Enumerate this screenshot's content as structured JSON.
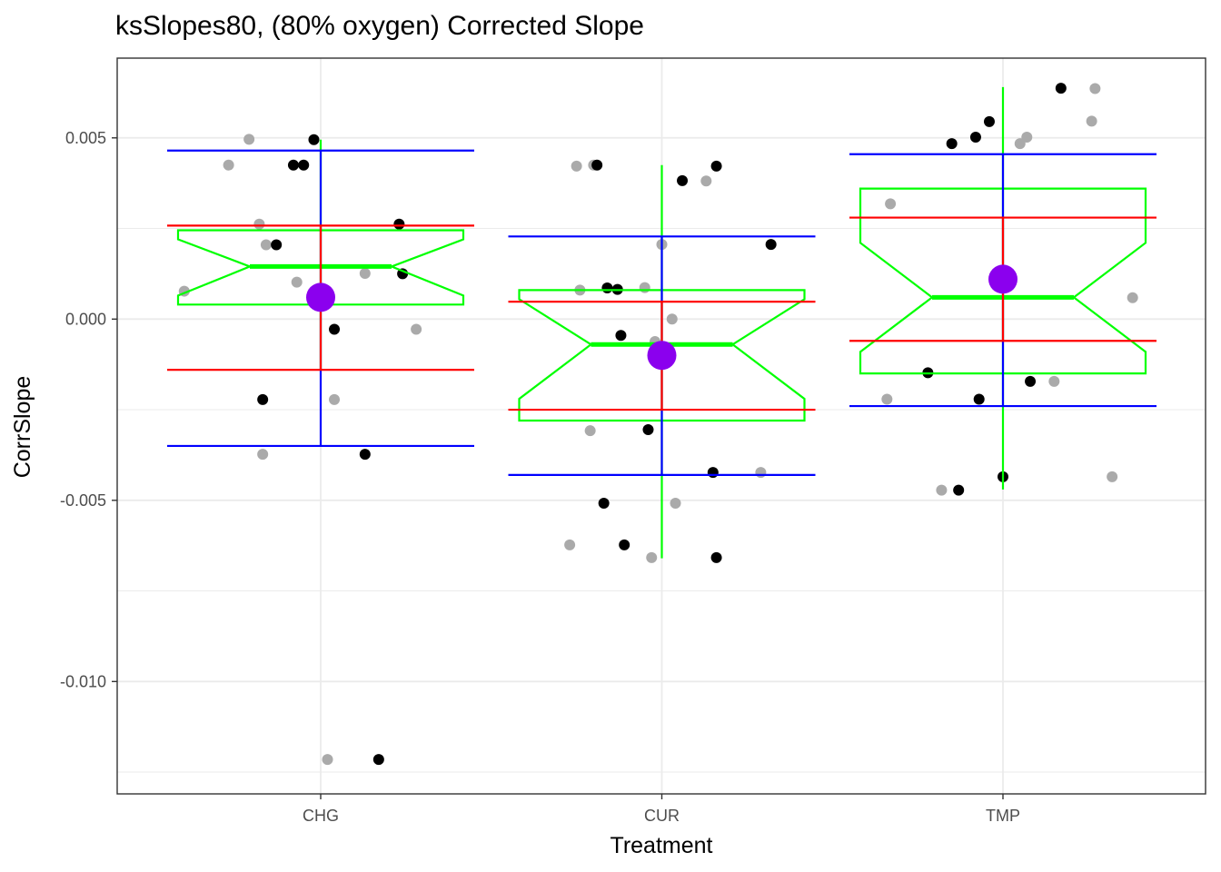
{
  "chart_data": {
    "type": "boxplot",
    "title": "ksSlopes80, (80% oxygen) Corrected Slope",
    "xlabel": "Treatment",
    "ylabel": "CorrSlope",
    "categories": [
      "CHG",
      "CUR",
      "TMP"
    ],
    "ylim": [
      -0.0131,
      0.0072
    ],
    "y_ticks": [
      {
        "value": 0.005,
        "label": "0.005"
      },
      {
        "value": 0.0,
        "label": "0.000"
      },
      {
        "value": -0.005,
        "label": "-0.005"
      },
      {
        "value": -0.01,
        "label": "-0.010"
      }
    ],
    "grid": true,
    "legend": "none",
    "colors": {
      "box": "#00ff00",
      "sd_bars": "#ff0000",
      "range_bars": "#0000ff",
      "mean_point": "#8b00ee",
      "raw_points": "#000000",
      "jitter_points": "#aaaaaa",
      "grid": "#ebebeb",
      "panel_border": "#333333"
    },
    "groups": [
      {
        "category": "CHG",
        "mean": 0.0006,
        "box": {
          "q1": 0.0004,
          "median": 0.00145,
          "q3": 0.00245,
          "notch_low": 0.00145,
          "notch_high": 0.00145,
          "whisker_low": -0.0014,
          "whisker_high": 0.00495
        },
        "sd_band": [
          -0.0014,
          0.00258
        ],
        "range_band": [
          -0.0035,
          0.00465
        ],
        "points": [
          [
            0.98,
            0.00495
          ],
          [
            0.92,
            0.00425
          ],
          [
            0.95,
            0.00425
          ],
          [
            0.87,
            0.00205
          ],
          [
            1.23,
            0.00262
          ],
          [
            1.24,
            0.00125
          ],
          [
            1.04,
            -0.00028
          ],
          [
            0.83,
            -0.00222
          ],
          [
            1.13,
            -0.00373
          ],
          [
            1.17,
            -0.01215
          ]
        ],
        "jitter_points": [
          [
            0.73,
            0.00425
          ],
          [
            0.79,
            0.00496
          ],
          [
            0.82,
            0.00262
          ],
          [
            0.84,
            0.00205
          ],
          [
            0.93,
            0.00102
          ],
          [
            0.6,
            0.00077
          ],
          [
            1.13,
            0.00126
          ],
          [
            1.28,
            -0.00028
          ],
          [
            1.04,
            -0.00222
          ],
          [
            0.83,
            -0.00373
          ],
          [
            1.02,
            -0.01215
          ]
        ]
      },
      {
        "category": "CUR",
        "mean": -0.001,
        "box": {
          "q1": -0.0028,
          "median": -0.0007,
          "q3": 0.0008,
          "notch_low": -0.0007,
          "notch_high": -0.0007,
          "whisker_low": -0.0066,
          "whisker_high": 0.00425
        },
        "sd_band": [
          -0.0025,
          0.00048
        ],
        "range_band": [
          -0.0043,
          0.00228
        ],
        "points": [
          [
            0.81,
            0.00425
          ],
          [
            1.16,
            0.00422
          ],
          [
            1.06,
            0.00382
          ],
          [
            1.32,
            0.00206
          ],
          [
            0.84,
            0.00086
          ],
          [
            0.87,
            0.00082
          ],
          [
            0.88,
            -0.00045
          ],
          [
            0.96,
            -0.00305
          ],
          [
            0.83,
            -0.00508
          ],
          [
            0.89,
            -0.00623
          ],
          [
            1.16,
            -0.00658
          ],
          [
            1.15,
            -0.00423
          ]
        ],
        "jitter_points": [
          [
            0.75,
            0.00422
          ],
          [
            0.8,
            0.00425
          ],
          [
            1.13,
            0.00381
          ],
          [
            1.0,
            0.00206
          ],
          [
            0.95,
            0.00087
          ],
          [
            0.76,
            0.0008
          ],
          [
            0.98,
            -0.00062
          ],
          [
            1.03,
            0.0
          ],
          [
            0.79,
            -0.00308
          ],
          [
            1.04,
            -0.00508
          ],
          [
            1.29,
            -0.00423
          ],
          [
            0.73,
            -0.00623
          ],
          [
            0.97,
            -0.00658
          ]
        ]
      },
      {
        "category": "TMP",
        "mean": 0.0011,
        "box": {
          "q1": -0.0015,
          "median": 0.0006,
          "q3": 0.0036,
          "notch_low": 0.0006,
          "notch_high": 0.0006,
          "whisker_low": -0.0047,
          "whisker_high": 0.0064
        },
        "sd_band": [
          -0.0006,
          0.0028
        ],
        "range_band": [
          -0.0024,
          0.00455
        ],
        "points": [
          [
            1.17,
            0.00637
          ],
          [
            0.96,
            0.00545
          ],
          [
            0.92,
            0.00502
          ],
          [
            0.85,
            0.00484
          ],
          [
            1.08,
            -0.00172
          ],
          [
            0.93,
            -0.00221
          ],
          [
            0.78,
            -0.00148
          ],
          [
            0.87,
            -0.00472
          ],
          [
            1.0,
            -0.00435
          ]
        ],
        "jitter_points": [
          [
            1.27,
            0.00636
          ],
          [
            1.26,
            0.00546
          ],
          [
            1.07,
            0.00502
          ],
          [
            1.05,
            0.00484
          ],
          [
            0.67,
            0.00318
          ],
          [
            1.38,
            0.00059
          ],
          [
            1.15,
            -0.00172
          ],
          [
            0.66,
            -0.00221
          ],
          [
            0.82,
            -0.00472
          ],
          [
            1.32,
            -0.00435
          ]
        ]
      }
    ]
  }
}
